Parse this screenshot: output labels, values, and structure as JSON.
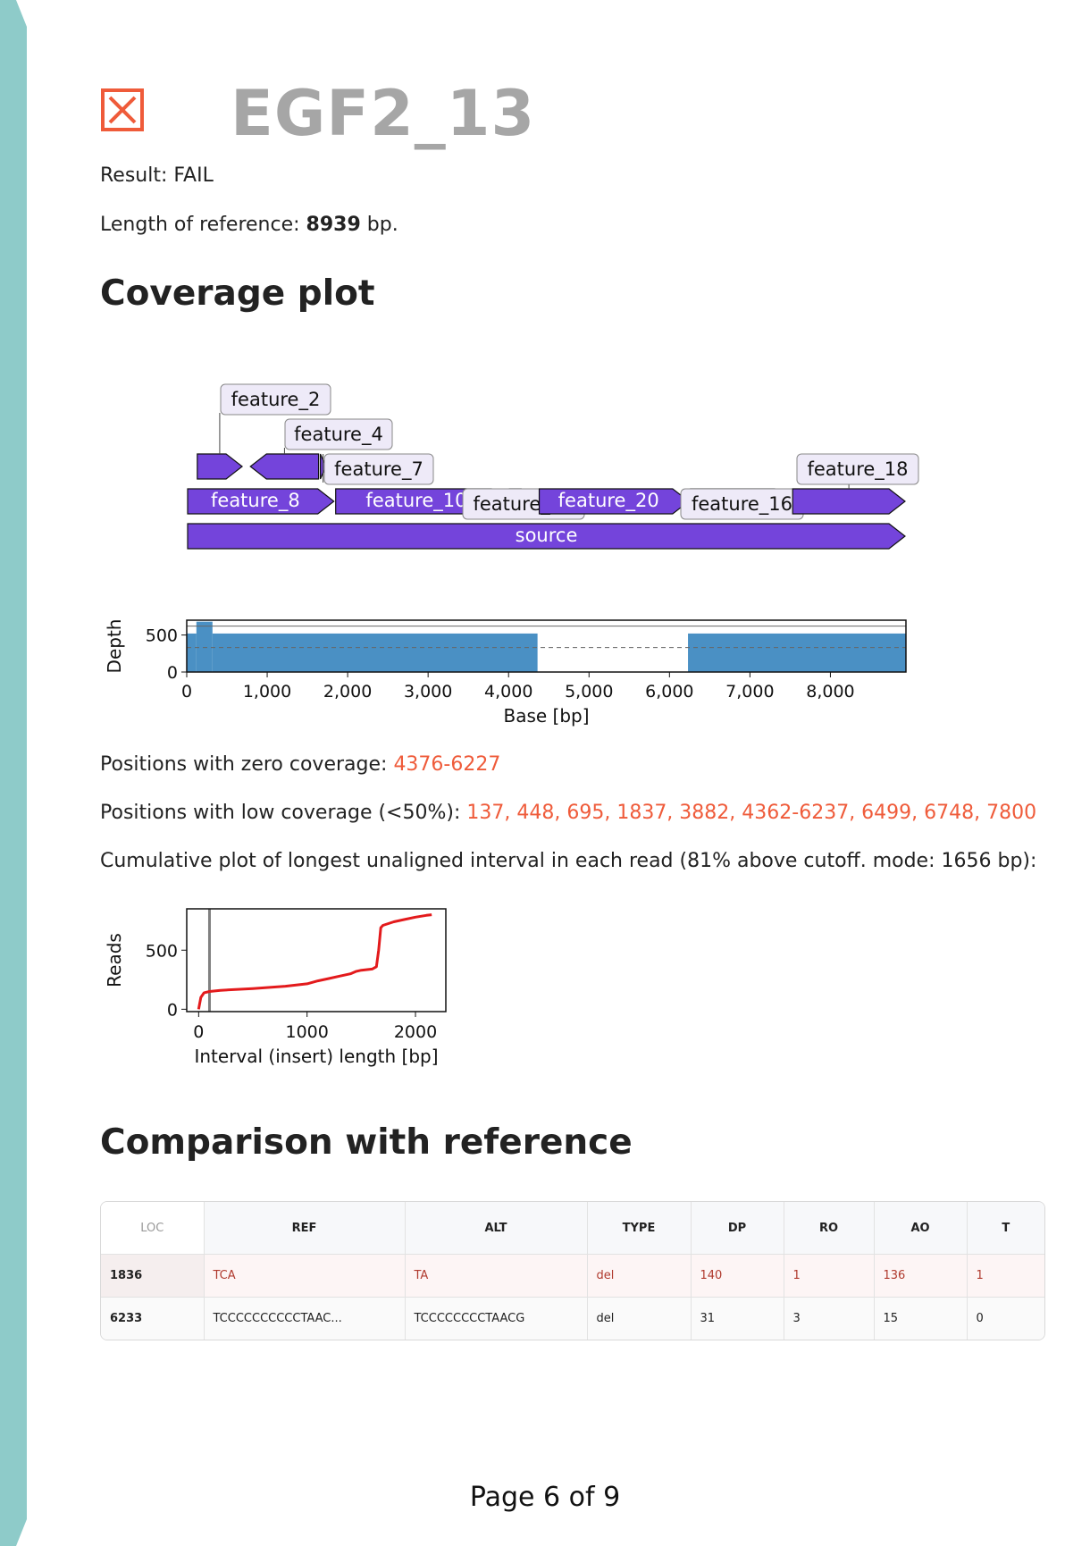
{
  "header": {
    "sample_name": "EGF2_13",
    "status_icon": "x-box-icon",
    "status_color": "#ef5b3a"
  },
  "result": {
    "label": "Result:",
    "value": "FAIL"
  },
  "reference": {
    "prefix": "Length of reference:",
    "length": "8939",
    "suffix": "bp."
  },
  "coverage_section": {
    "heading": "Coverage plot"
  },
  "feature_map": {
    "feature_color": "#7444db",
    "label_box_color": "#eeeaf8",
    "features": [
      {
        "label": "feature_2",
        "start": 120,
        "end": 700,
        "direction": 1,
        "label_inside": false
      },
      {
        "label": "feature_4",
        "start": 780,
        "end": 1650,
        "direction": -1,
        "label_inside": false
      },
      {
        "label": "feature_7",
        "start": 1650,
        "end": 1740,
        "direction": 1,
        "label_inside": false
      },
      {
        "label": "feature_8",
        "start": 0,
        "end": 1840,
        "direction": 1,
        "label_inside": true
      },
      {
        "label": "feature_10",
        "start": 1840,
        "end": 4000,
        "direction": 1,
        "label_inside": true
      },
      {
        "label": "feature_12",
        "start": 4000,
        "end": 4370,
        "direction": 1,
        "label_inside": false
      },
      {
        "label": "feature_20",
        "start": 4370,
        "end": 6250,
        "direction": 1,
        "label_inside": true
      },
      {
        "label": "feature_16",
        "start": 6250,
        "end": 7520,
        "direction": 1,
        "label_inside": false
      },
      {
        "label": "feature_18",
        "start": 7520,
        "end": 8939,
        "direction": 1,
        "label_inside": false
      },
      {
        "label": "source",
        "start": 0,
        "end": 8939,
        "direction": 1,
        "label_inside": true
      }
    ]
  },
  "chart_data": [
    {
      "type": "area",
      "xlabel": "Base [bp]",
      "ylabel": "Depth",
      "xlim": [
        0,
        8939
      ],
      "ylim": [
        0,
        700
      ],
      "x_ticks": [
        0,
        1000,
        2000,
        3000,
        4000,
        5000,
        6000,
        7000,
        8000
      ],
      "x_tick_labels": [
        "0",
        "1,000",
        "2,000",
        "3,000",
        "4,000",
        "5,000",
        "6,000",
        "7,000",
        "8,000"
      ],
      "y_ticks": [
        0,
        500
      ],
      "y_tick_labels": [
        "0",
        "500"
      ],
      "color": "#4a90c4",
      "segments": [
        {
          "x_start": 0,
          "x_end": 120,
          "depth": 520
        },
        {
          "x_start": 120,
          "x_end": 320,
          "depth": 680
        },
        {
          "x_start": 320,
          "x_end": 4360,
          "depth": 520
        },
        {
          "x_start": 4376,
          "x_end": 6227,
          "depth": 0
        },
        {
          "x_start": 6230,
          "x_end": 8939,
          "depth": 520
        }
      ],
      "reference_lines": [
        {
          "y": 620,
          "style": "solid"
        },
        {
          "y": 330,
          "style": "dashed"
        }
      ]
    },
    {
      "type": "line",
      "xlabel": "Interval (insert) length [bp]",
      "ylabel": "Reads",
      "xlim": [
        -110,
        2280
      ],
      "ylim": [
        -20,
        850
      ],
      "x_ticks": [
        0,
        1000,
        2000
      ],
      "x_tick_labels": [
        "0",
        "1000",
        "2000"
      ],
      "y_ticks": [
        0,
        500
      ],
      "y_tick_labels": [
        "0",
        "500"
      ],
      "cutoff_x": 100,
      "line_color": "#e31a1c",
      "cutoff_color": "#808080",
      "x": [
        0,
        20,
        50,
        100,
        200,
        500,
        800,
        1000,
        1100,
        1200,
        1300,
        1400,
        1450,
        1500,
        1600,
        1640,
        1660,
        1680,
        1700,
        1800,
        1900,
        2000,
        2100,
        2150
      ],
      "y": [
        0,
        100,
        140,
        150,
        160,
        175,
        195,
        215,
        240,
        260,
        280,
        300,
        320,
        330,
        340,
        360,
        500,
        690,
        710,
        740,
        760,
        780,
        795,
        800
      ]
    }
  ],
  "zero_coverage": {
    "label": "Positions with zero coverage:",
    "value": "4376-6227"
  },
  "low_coverage": {
    "label": "Positions with low coverage (<50%):",
    "value": "137, 448, 695, 1837, 3882, 4362-6237, 6499, 6748, 7800"
  },
  "cumulative": {
    "text": "Cumulative plot of longest unaligned interval in each read (81% above cutoff. mode: 1656 bp):"
  },
  "comparison_section": {
    "heading": "Comparison with reference"
  },
  "variants_table": {
    "columns": [
      "LOC",
      "REF",
      "ALT",
      "TYPE",
      "DP",
      "RO",
      "AO",
      "T"
    ],
    "rows": [
      [
        "1836",
        "TCA",
        "TA",
        "del",
        "140",
        "1",
        "136",
        "1"
      ],
      [
        "6233",
        "TCCCCCCCCCCTAAC...",
        "TCCCCCCCCTAACG",
        "del",
        "31",
        "3",
        "15",
        "0"
      ]
    ]
  },
  "footer": {
    "page_label": "Page 6 of 9"
  },
  "theme": {
    "sidebar_color": "#8ecbc9"
  }
}
